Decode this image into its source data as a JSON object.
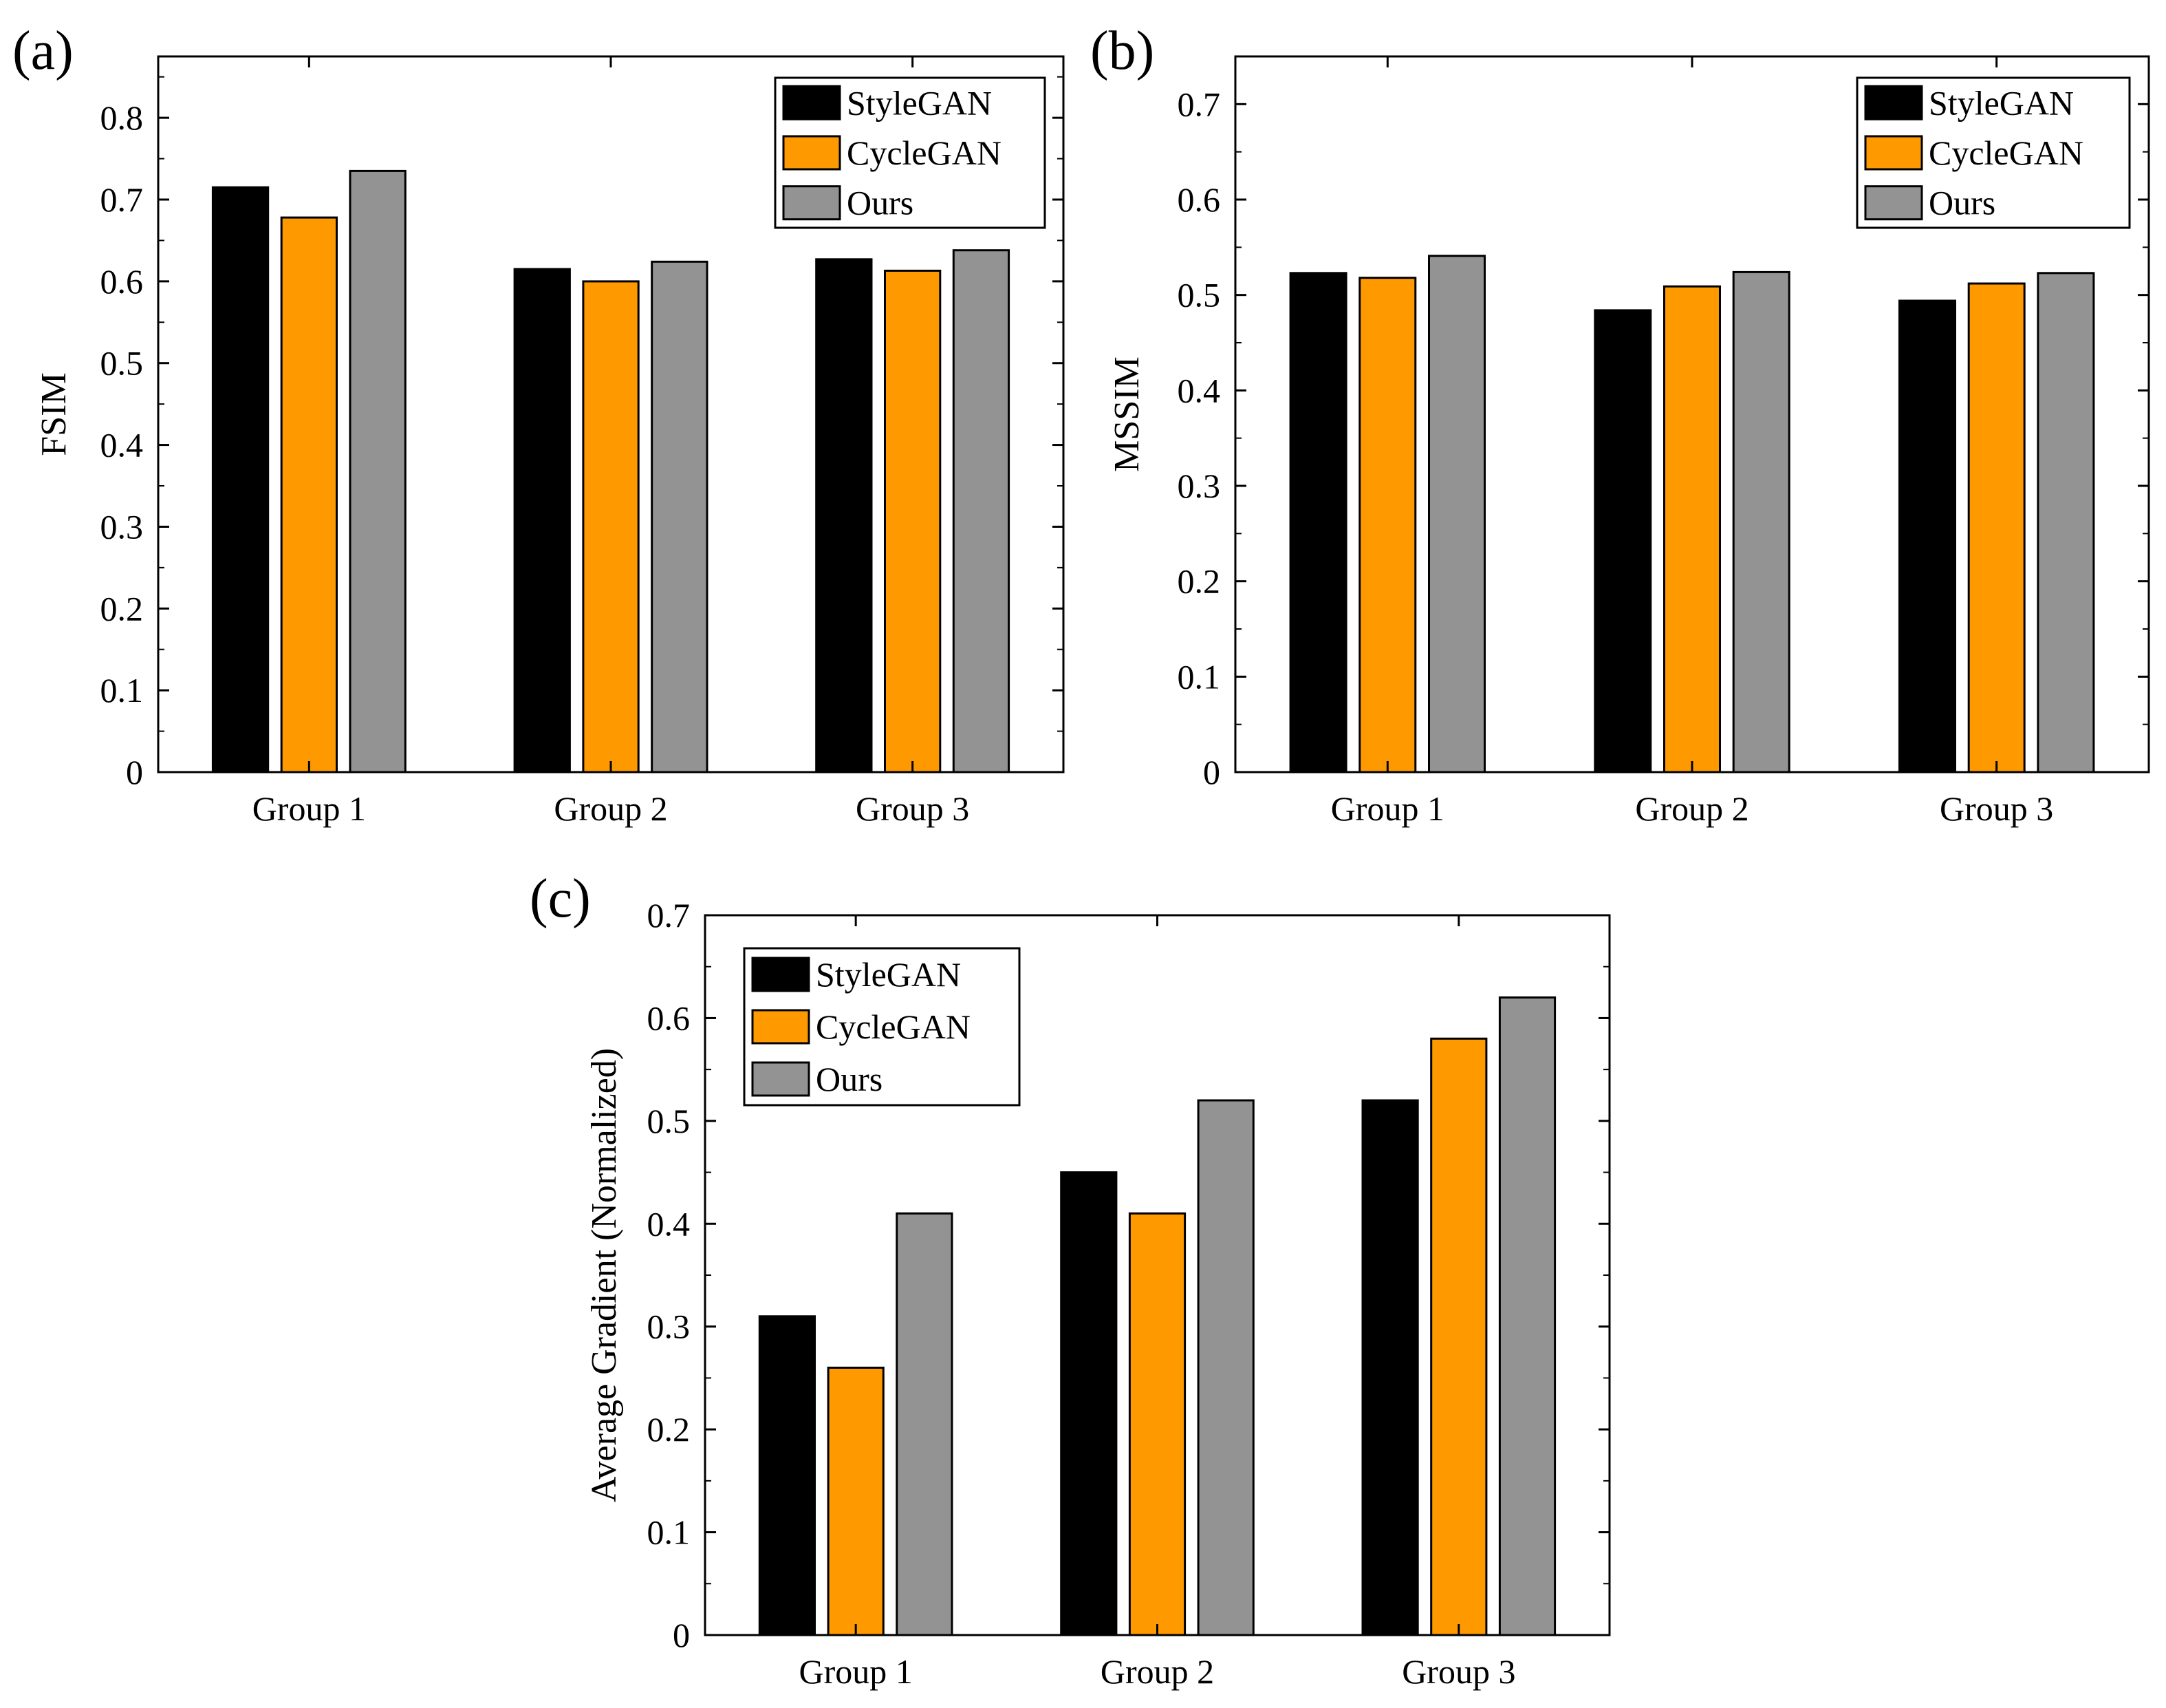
{
  "colors": {
    "StyleGAN": "#000000",
    "CycleGAN": "#ff9900",
    "Ours": "#939393",
    "edge": "#000000"
  },
  "chart_data": [
    {
      "id": "a",
      "panel_label": "(a)",
      "type": "bar",
      "categories": [
        "Group 1",
        "Group 2",
        "Group 3"
      ],
      "series": [
        {
          "name": "StyleGAN",
          "values": [
            0.715,
            0.615,
            0.627
          ]
        },
        {
          "name": "CycleGAN",
          "values": [
            0.678,
            0.6,
            0.613
          ]
        },
        {
          "name": "Ours",
          "values": [
            0.735,
            0.624,
            0.638
          ]
        }
      ],
      "xlabel": "",
      "ylabel": "FSIM",
      "ylim": [
        0,
        0.875
      ],
      "yticks": [
        0,
        0.1,
        0.2,
        0.3,
        0.4,
        0.5,
        0.6,
        0.7,
        0.8
      ],
      "ytick_labels": [
        "0",
        "0.1",
        "0.2",
        "0.3",
        "0.4",
        "0.5",
        "0.6",
        "0.7",
        "0.8"
      ],
      "legend": {
        "position": "top-right",
        "entries": [
          "StyleGAN",
          "CycleGAN",
          "Ours"
        ]
      },
      "grid": false
    },
    {
      "id": "b",
      "panel_label": "(b)",
      "type": "bar",
      "categories": [
        "Group 1",
        "Group 2",
        "Group 3"
      ],
      "series": [
        {
          "name": "StyleGAN",
          "values": [
            0.523,
            0.484,
            0.494
          ]
        },
        {
          "name": "CycleGAN",
          "values": [
            0.518,
            0.509,
            0.512
          ]
        },
        {
          "name": "Ours",
          "values": [
            0.541,
            0.524,
            0.523
          ]
        }
      ],
      "xlabel": "",
      "ylabel": "MSSIM",
      "ylim": [
        0,
        0.75
      ],
      "yticks": [
        0,
        0.1,
        0.2,
        0.3,
        0.4,
        0.5,
        0.6,
        0.7
      ],
      "ytick_labels": [
        "0",
        "0.1",
        "0.2",
        "0.3",
        "0.4",
        "0.5",
        "0.6",
        "0.7"
      ],
      "legend": {
        "position": "top-right",
        "entries": [
          "StyleGAN",
          "CycleGAN",
          "Ours"
        ]
      },
      "grid": false
    },
    {
      "id": "c",
      "panel_label": "(c)",
      "type": "bar",
      "categories": [
        "Group 1",
        "Group 2",
        "Group 3"
      ],
      "series": [
        {
          "name": "StyleGAN",
          "values": [
            0.31,
            0.45,
            0.52
          ]
        },
        {
          "name": "CycleGAN",
          "values": [
            0.26,
            0.41,
            0.58
          ]
        },
        {
          "name": "Ours",
          "values": [
            0.41,
            0.52,
            0.62
          ]
        }
      ],
      "xlabel": "",
      "ylabel": "Average Gradient (Normalized)",
      "ylim": [
        0,
        0.7
      ],
      "yticks": [
        0,
        0.1,
        0.2,
        0.3,
        0.4,
        0.5,
        0.6,
        0.7
      ],
      "ytick_labels": [
        "0",
        "0.1",
        "0.2",
        "0.3",
        "0.4",
        "0.5",
        "0.6",
        "0.7"
      ],
      "legend": {
        "position": "top-left",
        "entries": [
          "StyleGAN",
          "CycleGAN",
          "Ours"
        ]
      },
      "grid": false
    }
  ]
}
